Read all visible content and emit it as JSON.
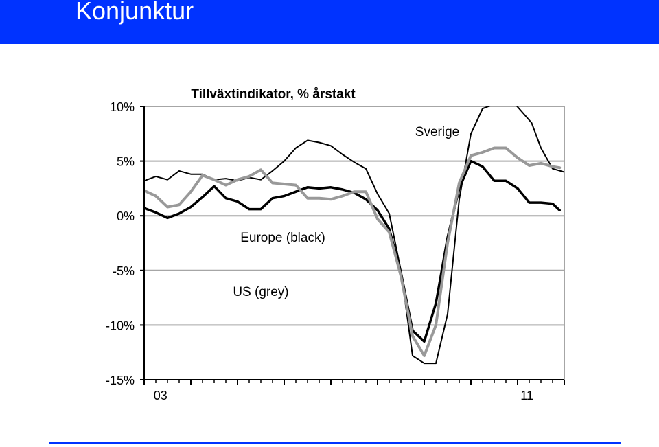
{
  "slide": {
    "title": "Konjunktur",
    "banner_color": "#0033ff",
    "footer_rule_color": "#0033ff"
  },
  "chart_data": {
    "type": "line",
    "title": "Tillväxtindikator, % årstakt",
    "xlabel": "",
    "ylabel": "",
    "ylim": [
      -15,
      10
    ],
    "y_ticks": [
      10,
      5,
      0,
      -5,
      -10,
      -15
    ],
    "y_tick_labels": [
      "10%",
      "5%",
      "0%",
      "-5%",
      "-10%",
      "-15%"
    ],
    "x_range": [
      2003,
      2012
    ],
    "x_tick_labels": [
      {
        "x": 2003.35,
        "label": "03"
      },
      {
        "x": 2011.2,
        "label": "11"
      }
    ],
    "grid": true,
    "annotations": [
      "Sverige",
      "Europe (black)",
      "US (grey)"
    ],
    "series": [
      {
        "name": "Sverige",
        "color": "#000000",
        "x": [
          2003.0,
          2003.25,
          2003.5,
          2003.75,
          2004.0,
          2004.25,
          2004.5,
          2004.75,
          2005.0,
          2005.25,
          2005.5,
          2005.75,
          2006.0,
          2006.25,
          2006.5,
          2006.75,
          2007.0,
          2007.25,
          2007.5,
          2007.75,
          2008.0,
          2008.25,
          2008.5,
          2008.75,
          2009.0,
          2009.25,
          2009.5,
          2009.75,
          2010.0,
          2010.25,
          2010.5,
          2010.75,
          2010.95,
          2011.3,
          2011.5,
          2011.75,
          2012.0
        ],
        "values": [
          3.2,
          3.6,
          3.3,
          4.1,
          3.8,
          3.8,
          3.3,
          3.4,
          3.2,
          3.5,
          3.3,
          4.1,
          5.0,
          6.2,
          6.9,
          6.7,
          6.4,
          5.6,
          4.9,
          4.3,
          2.0,
          0.2,
          -5.0,
          -12.8,
          -13.5,
          -13.5,
          -9.0,
          1.5,
          7.5,
          9.8,
          10.2,
          null,
          10.2,
          8.5,
          6.2,
          4.3,
          4.0
        ],
        "line_width": 2
      },
      {
        "name": "Europe (black)",
        "color": "#000000",
        "x": [
          2003.0,
          2003.25,
          2003.5,
          2003.75,
          2004.0,
          2004.25,
          2004.5,
          2004.75,
          2005.0,
          2005.25,
          2005.5,
          2005.75,
          2006.0,
          2006.25,
          2006.5,
          2006.75,
          2007.0,
          2007.25,
          2007.5,
          2007.75,
          2008.0,
          2008.25,
          2008.5,
          2008.75,
          2009.0,
          2009.25,
          2009.5,
          2009.75,
          2010.0,
          2010.25,
          2010.5,
          2010.75,
          2011.0,
          2011.25,
          2011.5,
          2011.75,
          2011.9
        ],
        "values": [
          0.7,
          0.3,
          -0.2,
          0.2,
          0.8,
          1.7,
          2.7,
          1.6,
          1.3,
          0.6,
          0.6,
          1.6,
          1.8,
          2.2,
          2.6,
          2.5,
          2.6,
          2.4,
          2.1,
          1.5,
          0.5,
          -1.2,
          -5.2,
          -10.5,
          -11.5,
          -8.0,
          -2.0,
          2.5,
          5.0,
          4.5,
          3.2,
          3.2,
          2.5,
          1.2,
          1.2,
          1.1,
          0.5
        ],
        "line_width": 3.5
      },
      {
        "name": "US (grey)",
        "color": "#999999",
        "x": [
          2003.0,
          2003.25,
          2003.5,
          2003.75,
          2004.0,
          2004.25,
          2004.5,
          2004.75,
          2005.0,
          2005.25,
          2005.5,
          2005.75,
          2006.0,
          2006.25,
          2006.5,
          2006.75,
          2007.0,
          2007.25,
          2007.5,
          2007.75,
          2008.0,
          2008.25,
          2008.5,
          2008.75,
          2009.0,
          2009.25,
          2009.5,
          2009.75,
          2010.0,
          2010.25,
          2010.5,
          2010.75,
          2011.0,
          2011.25,
          2011.5,
          2011.75,
          2011.9
        ],
        "values": [
          2.3,
          1.8,
          0.8,
          1.0,
          2.2,
          3.7,
          3.3,
          2.8,
          3.3,
          3.6,
          4.2,
          3.0,
          2.9,
          2.8,
          1.6,
          1.6,
          1.5,
          1.8,
          2.2,
          2.2,
          -0.3,
          -1.5,
          -5.5,
          -11.0,
          -12.8,
          -10.0,
          -2.5,
          3.0,
          5.5,
          5.8,
          6.2,
          6.2,
          5.3,
          4.6,
          4.8,
          4.5,
          4.4
        ],
        "line_width": 4
      }
    ]
  }
}
